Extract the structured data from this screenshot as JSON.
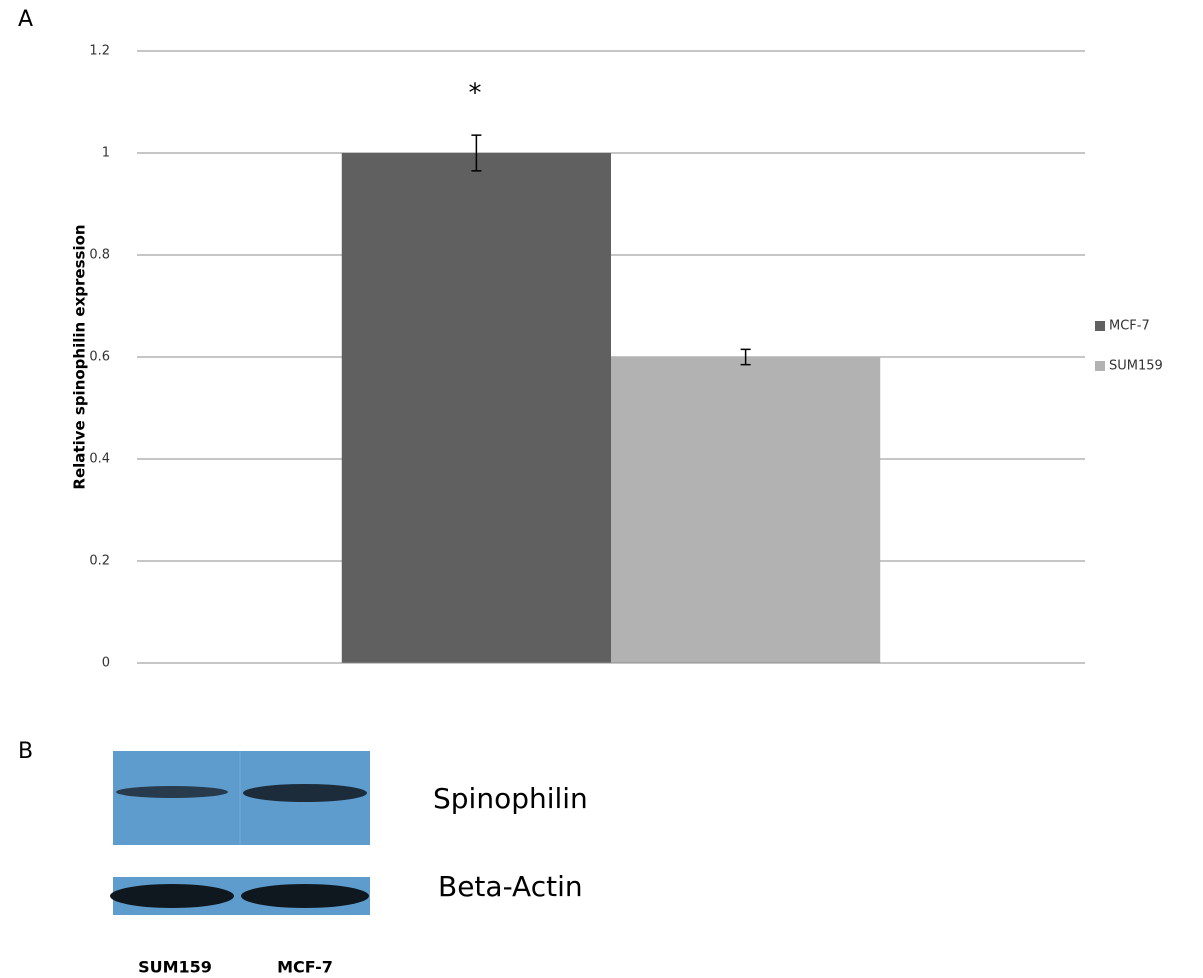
{
  "chart_data": {
    "type": "bar",
    "panel_label": "A",
    "y_label": "Relative spinophilin expression",
    "annotation": "*",
    "series": [
      {
        "name": "MCF-7",
        "color": "#606060",
        "values": [
          1
        ],
        "errors": [
          0.035
        ]
      },
      {
        "name": "SUM159",
        "color": "#b2b2b2",
        "values": [
          0.6
        ],
        "errors": [
          0.015
        ]
      }
    ],
    "ylim": [
      0,
      1.2
    ],
    "yticks": [
      0,
      0.2,
      0.4,
      0.6,
      0.8,
      1,
      1.2
    ],
    "grid": true,
    "legend": "right"
  },
  "blot": {
    "panel_label": "B",
    "rows": [
      "Spinophilin",
      "Beta-Actin"
    ],
    "lanes": [
      "SUM159",
      "MCF-7"
    ]
  }
}
